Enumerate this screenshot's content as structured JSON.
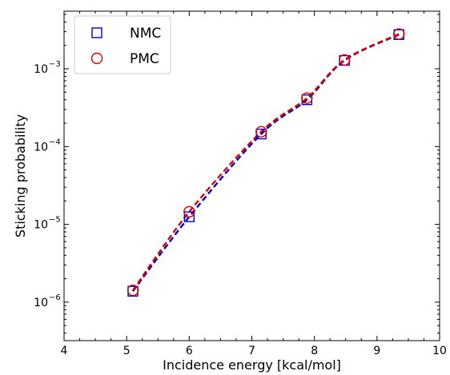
{
  "chart_data": {
    "type": "line",
    "xlabel": "Incidence energy [kcal/mol]",
    "ylabel": "Sticking probability",
    "xlim": [
      4,
      10
    ],
    "ylim": [
      3.2e-07,
      0.0055
    ],
    "yscale": "log",
    "x_ticks": [
      "4",
      "5",
      "6",
      "7",
      "8",
      "9",
      "10"
    ],
    "y_ticks": [
      {
        "value": 1e-06,
        "mantissa": "10",
        "exponent": "−6"
      },
      {
        "value": 1e-05,
        "mantissa": "10",
        "exponent": "−5"
      },
      {
        "value": 0.0001,
        "mantissa": "10",
        "exponent": "−4"
      },
      {
        "value": 0.001,
        "mantissa": "10",
        "exponent": "−3"
      }
    ],
    "grid": false,
    "legend_position": "top-left",
    "series": [
      {
        "name": "NMC",
        "marker": "square",
        "color": "#0000cc",
        "x": [
          5.1,
          6.0,
          7.15,
          7.88,
          8.48,
          9.35
        ],
        "y": [
          1.38e-06,
          1.25e-05,
          0.000145,
          0.0004,
          0.00128,
          0.00275
        ]
      },
      {
        "name": "PMC",
        "marker": "circle",
        "color": "#dd0000",
        "x": [
          5.1,
          6.0,
          7.15,
          7.88,
          8.48,
          9.35
        ],
        "y": [
          1.42e-06,
          1.45e-05,
          0.000155,
          0.00042,
          0.0013,
          0.0028
        ]
      }
    ]
  }
}
